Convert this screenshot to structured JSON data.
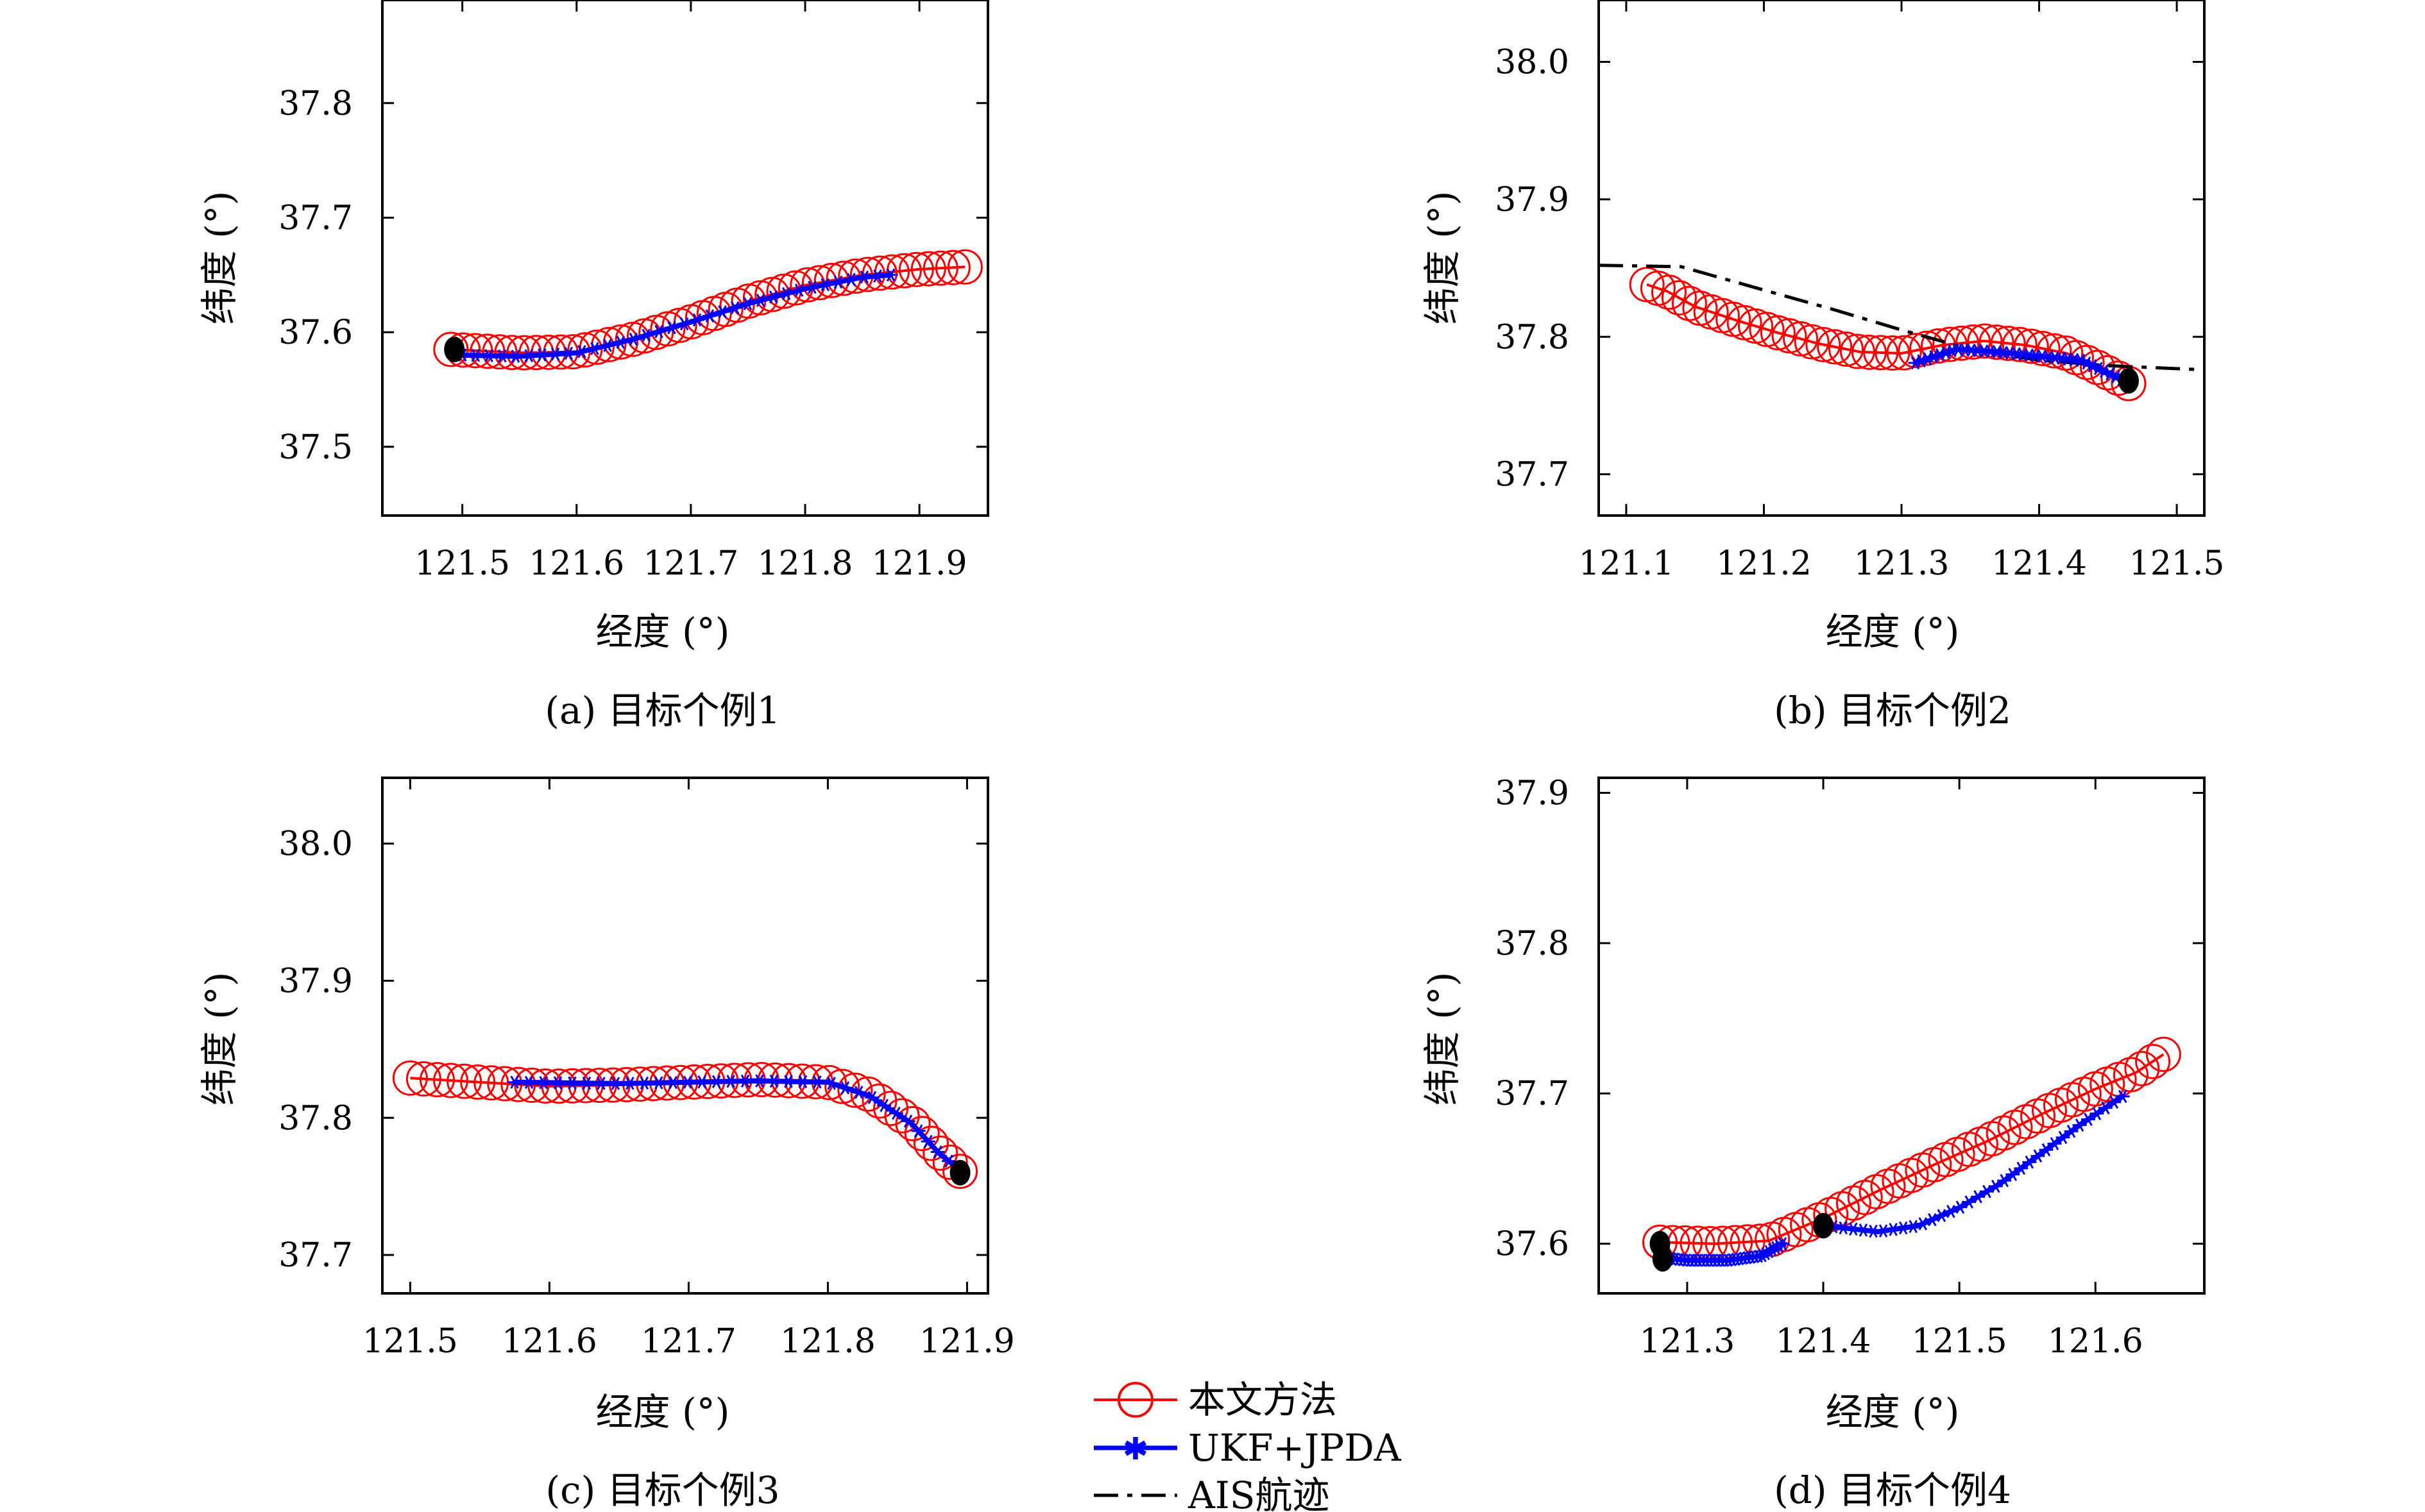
{
  "colors": {
    "proposed": "#ff0000",
    "ukf": "#0000ff",
    "ais": "#000000",
    "endpoint": "#000000"
  },
  "legend": {
    "placement": "bottom-center",
    "items": [
      {
        "label": "本文方法",
        "color": "#ff0000",
        "marker": "circle-line"
      },
      {
        "label": "UKF+JPDA",
        "color": "#0000ff",
        "marker": "star-line"
      },
      {
        "label": "AIS航迹",
        "color": "#000000",
        "marker": "dashdot-line"
      }
    ]
  },
  "chart_data": [
    {
      "type": "scatter",
      "caption": "(a) 目标个例1",
      "xlabel": "经度 (°)",
      "ylabel": "纬度 (°)",
      "xlim": [
        121.43,
        121.96
      ],
      "ylim": [
        37.44,
        37.89
      ],
      "xticks": [
        121.5,
        121.6,
        121.7,
        121.8,
        121.9
      ],
      "xtick_labels": [
        "121.5",
        "121.6",
        "121.7",
        "121.8",
        "121.9"
      ],
      "yticks": [
        37.5,
        37.6,
        37.7,
        37.8
      ],
      "ytick_labels": [
        "37.5",
        "37.6",
        "37.7",
        "37.8"
      ],
      "grid": false,
      "series": [
        {
          "name": "本文方法",
          "style": "circles",
          "x": [
            121.49,
            121.55,
            121.6,
            121.65,
            121.7,
            121.75,
            121.8,
            121.85,
            121.9,
            121.94
          ],
          "y": [
            37.585,
            37.582,
            37.583,
            37.594,
            37.609,
            37.627,
            37.641,
            37.65,
            37.655,
            37.657
          ]
        },
        {
          "name": "UKF+JPDA",
          "style": "stars",
          "x": [
            121.5,
            121.55,
            121.6,
            121.65,
            121.7,
            121.75,
            121.8,
            121.85,
            121.875
          ],
          "y": [
            37.58,
            37.579,
            37.582,
            37.594,
            37.609,
            37.625,
            37.638,
            37.648,
            37.65
          ]
        }
      ],
      "endpoints": [
        {
          "x": 121.493,
          "y": 37.585
        }
      ]
    },
    {
      "type": "scatter",
      "caption": "(b) 目标个例2",
      "xlabel": "经度 (°)",
      "ylabel": "纬度 (°)",
      "xlim": [
        121.08,
        121.52
      ],
      "ylim": [
        37.67,
        38.045
      ],
      "xticks": [
        121.1,
        121.2,
        121.3,
        121.4,
        121.5
      ],
      "xtick_labels": [
        "121.1",
        "121.2",
        "121.3",
        "121.4",
        "121.5"
      ],
      "yticks": [
        37.7,
        37.8,
        37.9,
        38.0
      ],
      "ytick_labels": [
        "37.7",
        "37.8",
        "37.9",
        "38.0"
      ],
      "grid": false,
      "series": [
        {
          "name": "本文方法",
          "style": "circles",
          "x": [
            121.115,
            121.13,
            121.15,
            121.18,
            121.21,
            121.24,
            121.27,
            121.3,
            121.33,
            121.36,
            121.39,
            121.42,
            121.44,
            121.465
          ],
          "y": [
            37.838,
            37.833,
            37.822,
            37.812,
            37.803,
            37.795,
            37.789,
            37.788,
            37.794,
            37.797,
            37.794,
            37.788,
            37.779,
            37.766
          ]
        },
        {
          "name": "UKF+JPDA",
          "style": "stars",
          "x": [
            121.31,
            121.34,
            121.37,
            121.4,
            121.43,
            121.46
          ],
          "y": [
            37.781,
            37.791,
            37.789,
            37.786,
            37.783,
            37.769
          ]
        },
        {
          "name": "AIS航迹",
          "style": "dashdot",
          "x": [
            121.08,
            121.14,
            121.2,
            121.25,
            121.3,
            121.35,
            121.4,
            121.45,
            121.52
          ],
          "y": [
            37.852,
            37.851,
            37.834,
            37.82,
            37.805,
            37.791,
            37.783,
            37.779,
            37.776
          ]
        }
      ],
      "endpoints": [
        {
          "x": 121.465,
          "y": 37.768
        }
      ]
    },
    {
      "type": "scatter",
      "caption": "(c) 目标个例3",
      "xlabel": "经度 (°)",
      "ylabel": "纬度 (°)",
      "xlim": [
        121.48,
        121.915
      ],
      "ylim": [
        37.672,
        38.048
      ],
      "xticks": [
        121.5,
        121.6,
        121.7,
        121.8,
        121.9
      ],
      "xtick_labels": [
        "121.5",
        "121.6",
        "121.7",
        "121.8",
        "121.9"
      ],
      "yticks": [
        37.7,
        37.8,
        37.9,
        38.0
      ],
      "ytick_labels": [
        "37.7",
        "37.8",
        "37.9",
        "38.0"
      ],
      "grid": false,
      "series": [
        {
          "name": "本文方法",
          "style": "circles",
          "x": [
            121.5,
            121.55,
            121.6,
            121.65,
            121.7,
            121.75,
            121.8,
            121.83,
            121.86,
            121.88,
            121.895
          ],
          "y": [
            37.829,
            37.826,
            37.823,
            37.824,
            37.826,
            37.828,
            37.826,
            37.817,
            37.797,
            37.775,
            37.761
          ]
        },
        {
          "name": "UKF+JPDA",
          "style": "stars",
          "x": [
            121.575,
            121.65,
            121.7,
            121.75,
            121.8,
            121.83,
            121.86,
            121.88,
            121.895
          ],
          "y": [
            37.826,
            37.825,
            37.826,
            37.827,
            37.826,
            37.816,
            37.796,
            37.774,
            37.762
          ]
        }
      ],
      "endpoints": [
        {
          "x": 121.895,
          "y": 37.76
        }
      ]
    },
    {
      "type": "scatter",
      "caption": "(d) 目标个例4",
      "xlabel": "经度 (°)",
      "ylabel": "纬度 (°)",
      "xlim": [
        121.235,
        121.68
      ],
      "ylim": [
        37.567,
        37.91
      ],
      "xticks": [
        121.3,
        121.4,
        121.5,
        121.6
      ],
      "xtick_labels": [
        "121.3",
        "121.4",
        "121.5",
        "121.6"
      ],
      "yticks": [
        37.6,
        37.7,
        37.8,
        37.9
      ],
      "ytick_labels": [
        "37.6",
        "37.7",
        "37.8",
        "37.9"
      ],
      "grid": false,
      "series": [
        {
          "name": "本文方法",
          "style": "circles",
          "x": [
            121.28,
            121.32,
            121.36,
            121.4,
            121.44,
            121.48,
            121.52,
            121.56,
            121.6,
            121.63,
            121.65
          ],
          "y": [
            37.601,
            37.6,
            37.602,
            37.617,
            37.635,
            37.652,
            37.668,
            37.686,
            37.703,
            37.714,
            37.726
          ]
        },
        {
          "name": "UKF+JPDA",
          "style": "stars",
          "x": [
            121.28,
            121.3,
            121.33,
            121.355,
            121.37
          ],
          "y": [
            37.591,
            37.589,
            37.589,
            37.592,
            37.6
          ]
        },
        {
          "name": "UKF+JPDA",
          "style": "stars",
          "x": [
            121.4,
            121.44,
            121.47,
            121.5,
            121.53,
            121.56,
            121.59,
            121.62
          ],
          "y": [
            37.612,
            37.608,
            37.612,
            37.624,
            37.64,
            37.66,
            37.68,
            37.698
          ]
        }
      ],
      "endpoints": [
        {
          "x": 121.28,
          "y": 37.6
        },
        {
          "x": 121.282,
          "y": 37.59
        },
        {
          "x": 121.4,
          "y": 37.612
        }
      ]
    }
  ]
}
